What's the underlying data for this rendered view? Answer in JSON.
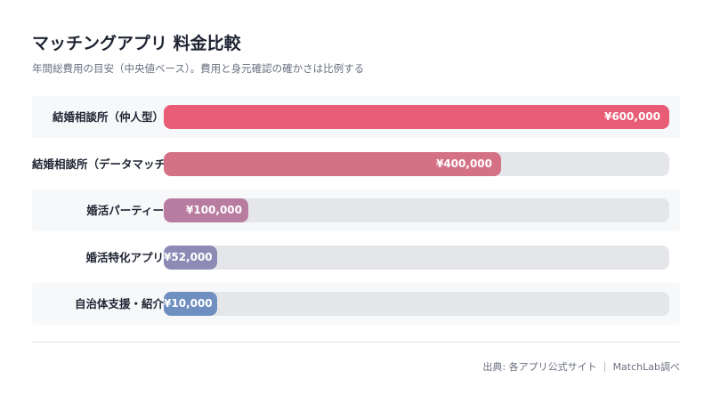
{
  "chart_data": {
    "type": "bar",
    "orientation": "horizontal",
    "title": "マッチングアプリ 料金比較",
    "subtitle": "年間総費用の目安（中央値ベース）。費用と身元確認の確かさは比例する",
    "categories": [
      "結婚相談所（仲人型）",
      "結婚相談所（データマッチング型）",
      "婚活パーティー",
      "婚活特化アプリ",
      "自治体支援・紹介"
    ],
    "values": [
      600000,
      400000,
      100000,
      52000,
      10000
    ],
    "value_labels": [
      "¥600,000",
      "¥400,000",
      "¥100,000",
      "¥52,000",
      "¥10,000"
    ],
    "colors": [
      "#e85d75",
      "#d57185",
      "#b87ca1",
      "#8d8bb6",
      "#6f8fc0"
    ],
    "xlim": [
      0,
      600000
    ],
    "grid": false,
    "legend": "none"
  },
  "source": "出典: 各アプリ公式サイト ｜ MatchLab調べ"
}
